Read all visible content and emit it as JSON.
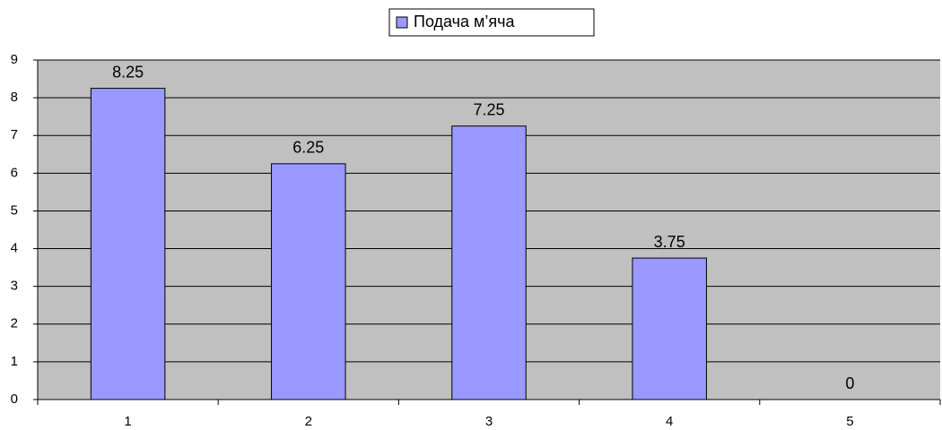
{
  "chart_data": {
    "type": "bar",
    "categories": [
      "1",
      "2",
      "3",
      "4",
      "5"
    ],
    "series": [
      {
        "name": "Подача м’яча",
        "color": "#9999ff",
        "values": [
          8.25,
          6.25,
          7.25,
          3.75,
          0
        ]
      }
    ],
    "ylim": [
      0,
      9
    ],
    "yticks": [
      0,
      1,
      2,
      3,
      4,
      5,
      6,
      7,
      8,
      9
    ],
    "grid": true,
    "legend": "top",
    "data_labels": true
  }
}
